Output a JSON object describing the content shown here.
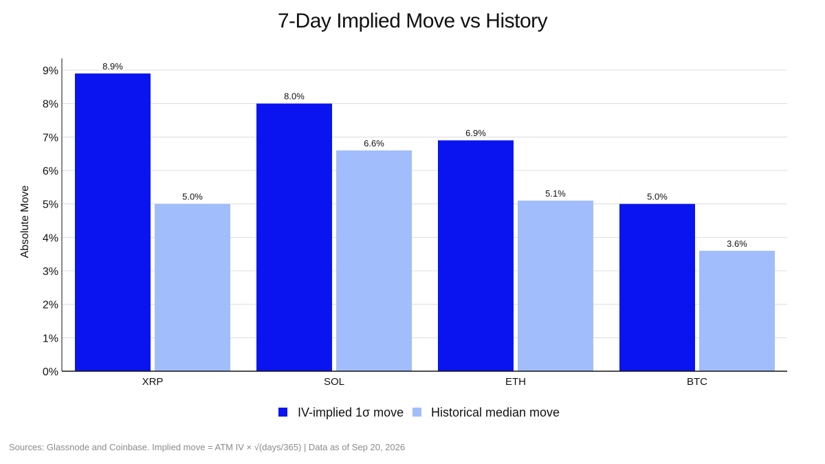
{
  "chart_data": {
    "type": "bar",
    "title": "7-Day Implied Move vs History",
    "xlabel": "",
    "ylabel": "Absolute Move",
    "categories": [
      "XRP",
      "SOL",
      "ETH",
      "BTC"
    ],
    "series": [
      {
        "name": "IV-implied 1σ move",
        "color": "#0a14f0",
        "values": [
          8.9,
          8.0,
          6.9,
          5.0
        ],
        "labels": [
          "8.9%",
          "8.0%",
          "6.9%",
          "5.0%"
        ]
      },
      {
        "name": "Historical median move",
        "color": "#a2bdfb",
        "values": [
          5.0,
          6.6,
          5.1,
          3.6
        ],
        "labels": [
          "5.0%",
          "6.6%",
          "5.1%",
          "3.6%"
        ]
      }
    ],
    "ylim": [
      0,
      9
    ],
    "yticks": [
      "0%",
      "1%",
      "2%",
      "3%",
      "4%",
      "5%",
      "6%",
      "7%",
      "8%",
      "9%"
    ],
    "grid": true,
    "legend_position": "bottom-center"
  },
  "source_note": "Sources: Glassnode and Coinbase. Implied move = ATM IV × √(days/365) | Data as of Sep 20, 2026"
}
